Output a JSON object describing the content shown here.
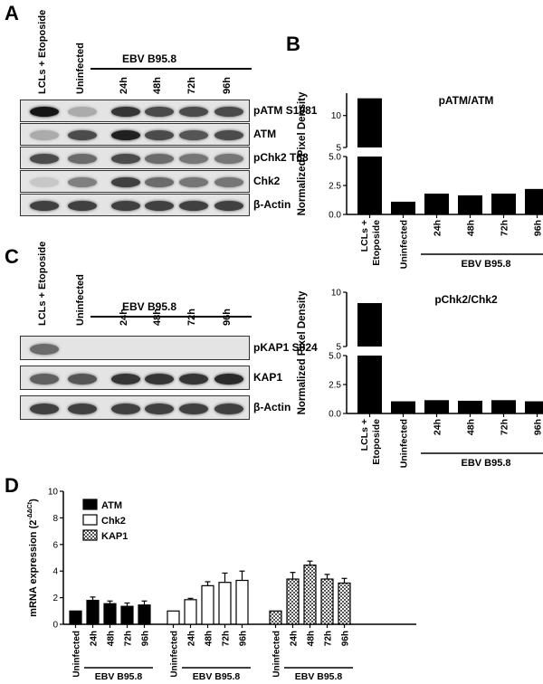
{
  "panels": {
    "A": "A",
    "B": "B",
    "C": "C",
    "D": "D"
  },
  "panel_a": {
    "lanes": [
      "LCLs + Etoposide",
      "Uninfected",
      "24h",
      "48h",
      "72h",
      "96h"
    ],
    "group_label": "EBV B95.8",
    "blots": [
      "pATM S1981",
      "ATM",
      "pChk2 T68",
      "Chk2",
      "β-Actin"
    ],
    "band_intensity": [
      [
        0.95,
        0.25,
        0.8,
        0.7,
        0.7,
        0.7
      ],
      [
        0.25,
        0.7,
        0.9,
        0.7,
        0.65,
        0.7
      ],
      [
        0.7,
        0.55,
        0.7,
        0.55,
        0.5,
        0.5
      ],
      [
        0.12,
        0.45,
        0.75,
        0.55,
        0.5,
        0.5
      ],
      [
        0.75,
        0.75,
        0.75,
        0.75,
        0.75,
        0.75
      ]
    ]
  },
  "panel_c": {
    "lanes": [
      "LCLs + Etoposide",
      "Uninfected",
      "24h",
      "48h",
      "72h",
      "96h"
    ],
    "group_label": "EBV B95.8",
    "blots": [
      "pKAP1 S824",
      "KAP1",
      "β-Actin"
    ],
    "band_intensity": [
      [
        0.55,
        0.0,
        0.0,
        0.0,
        0.0,
        0.0
      ],
      [
        0.6,
        0.65,
        0.8,
        0.8,
        0.8,
        0.85
      ],
      [
        0.75,
        0.75,
        0.75,
        0.75,
        0.75,
        0.75
      ]
    ]
  },
  "chart_data": [
    {
      "type": "bar",
      "title": "pATM/ATM",
      "ylabel": "Normalized Pixel Density",
      "categories": [
        "LCLs + Etoposide",
        "Uninfected",
        "24h",
        "48h",
        "72h",
        "96h"
      ],
      "values": [
        12.7,
        1.1,
        1.8,
        1.65,
        1.8,
        2.2
      ],
      "broken_axis": true,
      "lower_ylim": [
        0,
        5
      ],
      "lower_ticks": [
        "0.0",
        "2.5",
        "5.0"
      ],
      "upper_ylim": [
        5,
        13.5
      ],
      "upper_ticks": [
        "5",
        "10"
      ],
      "group_label": "EBV B95.8"
    },
    {
      "type": "bar",
      "title": "pChk2/Chk2",
      "ylabel": "Normalized Pixel Density",
      "categories": [
        "LCLs + Etoposide",
        "Uninfected",
        "24h",
        "48h",
        "72h",
        "96h"
      ],
      "values": [
        9.0,
        1.05,
        1.15,
        1.1,
        1.15,
        1.05
      ],
      "broken_axis": true,
      "lower_ylim": [
        0,
        5
      ],
      "lower_ticks": [
        "0.0",
        "2.5",
        "5.0"
      ],
      "upper_ylim": [
        5,
        10
      ],
      "upper_ticks": [
        "5",
        "10"
      ],
      "group_label": "EBV B95.8"
    },
    {
      "type": "bar",
      "title": "",
      "ylabel": "mRNA expression (2",
      "ylabel_sup": "-ΔΔCt",
      "ylabel_close": ")",
      "ylim": [
        0,
        10
      ],
      "yticks": [
        "0",
        "2",
        "4",
        "6",
        "8",
        "10"
      ],
      "categories": [
        "Uninfected",
        "24h",
        "48h",
        "72h",
        "96h"
      ],
      "group_label": "EBV B95.8",
      "series": [
        {
          "name": "ATM",
          "fill": "#000000",
          "values": [
            1.0,
            1.8,
            1.55,
            1.35,
            1.45
          ],
          "errors": [
            0,
            0.25,
            0.2,
            0.25,
            0.3
          ]
        },
        {
          "name": "Chk2",
          "fill": "#ffffff",
          "values": [
            1.0,
            1.85,
            2.9,
            3.15,
            3.3
          ],
          "errors": [
            0,
            0.1,
            0.3,
            0.7,
            0.7
          ]
        },
        {
          "name": "KAP1",
          "fill": "pattern",
          "values": [
            1.0,
            3.4,
            4.45,
            3.4,
            3.1
          ],
          "errors": [
            0,
            0.5,
            0.3,
            0.35,
            0.35
          ]
        }
      ]
    }
  ]
}
